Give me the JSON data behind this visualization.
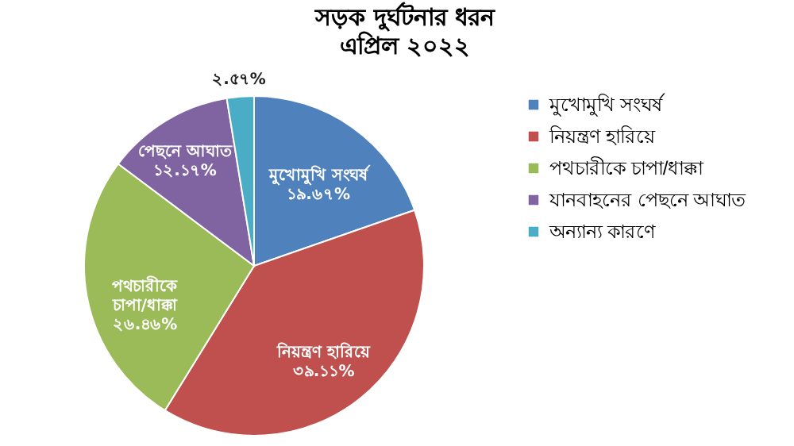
{
  "chart_data": {
    "type": "pie",
    "title": "সড়ক দুর্ঘটনার ধরন",
    "subtitle": "এপ্রিল ২০২২",
    "categories": [
      "মুখোমুখি সংঘর্ষ",
      "নিয়ন্ত্রণ হারিয়ে",
      "পথচারীকে চাপা/ধাক্কা",
      "যানবাহনের পেছনে আঘাত",
      "অন্যান্য কারণে"
    ],
    "values": [
      19.67,
      39.11,
      26.46,
      12.17,
      2.57
    ],
    "colors": [
      "#4f81bd",
      "#c0504d",
      "#9bbb59",
      "#8064a2",
      "#4bacc6"
    ],
    "value_labels": [
      "মুখোমুখি সংঘর্ষ\n১৯.৬৭%",
      "নিয়ন্ত্রণ হারিয়ে\n৩৯.১১%",
      "পথচারীকে\nচাপা/ধাক্কা\n২৬.৪৬%",
      "পেছনে আঘাত\n১২.১৭%",
      "২.৫৭%"
    ],
    "legend": "right"
  }
}
